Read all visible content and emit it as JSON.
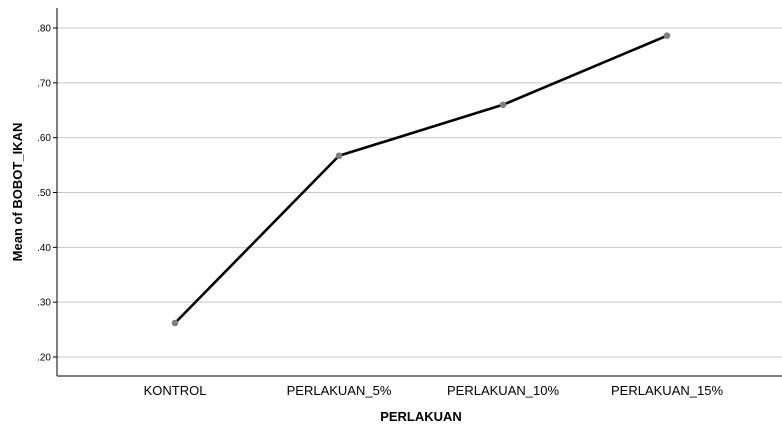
{
  "chart_data": {
    "type": "line",
    "title": "",
    "xlabel": "PERLAKUAN",
    "ylabel": "Mean of BOBOT_IKAN",
    "categories": [
      "KONTROL",
      "PERLAKUAN_5%",
      "PERLAKUAN_10%",
      "PERLAKUAN_15%"
    ],
    "series": [
      {
        "values": [
          0.262,
          0.567,
          0.66,
          0.786
        ]
      }
    ],
    "ylim": [
      0.2,
      0.8
    ],
    "yticks": [
      ".20",
      ".30",
      ".40",
      ".50",
      ".60",
      ".70",
      ".80"
    ],
    "grid": true,
    "colors": {
      "line": "#000000",
      "marker": "#808080",
      "grid": "#c8c8c8",
      "axis": "#000000"
    }
  }
}
